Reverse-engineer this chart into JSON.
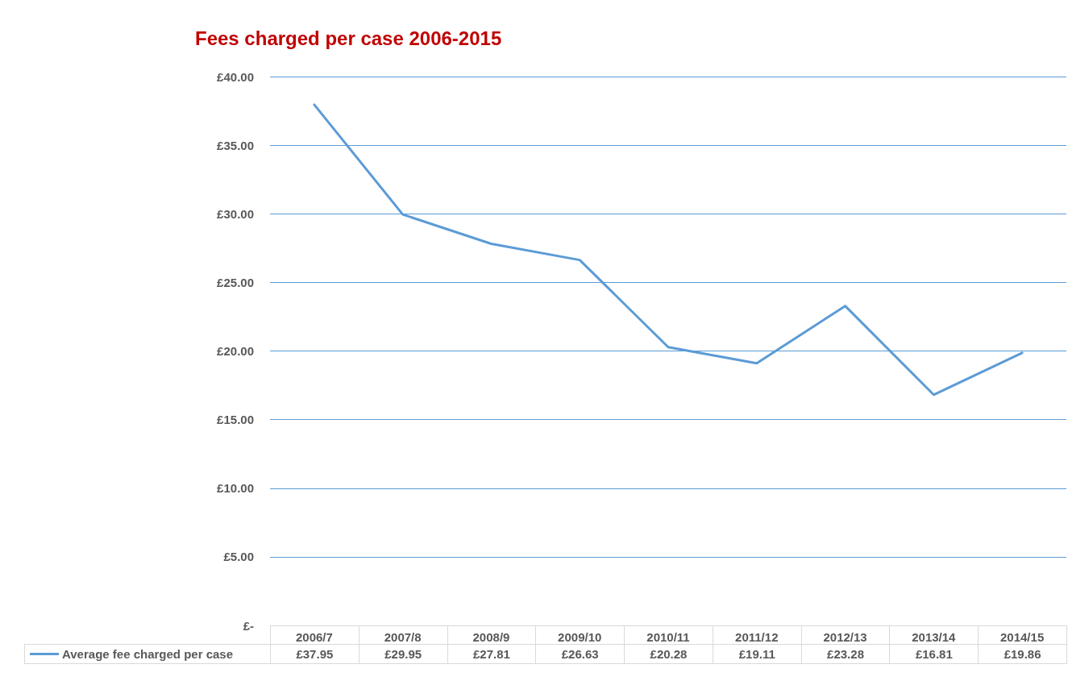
{
  "chart_data": {
    "type": "line",
    "title": "Fees charged per case 2006-2015",
    "categories": [
      "2006/7",
      "2007/8",
      "2008/9",
      "2009/10",
      "2010/11",
      "2011/12",
      "2012/13",
      "2013/14",
      "2014/15"
    ],
    "series": [
      {
        "name": "Average fee charged per case",
        "color": "#5b9bd5",
        "values": [
          37.95,
          29.95,
          27.81,
          26.63,
          20.28,
          19.11,
          23.28,
          16.81,
          19.86
        ],
        "value_labels": [
          "£37.95",
          "£29.95",
          "£27.81",
          "£26.63",
          "£20.28",
          "£19.11",
          "£23.28",
          "£16.81",
          "£19.86"
        ]
      }
    ],
    "ylim": [
      0,
      40
    ],
    "yticks": [
      {
        "value": 0,
        "label": "£-"
      },
      {
        "value": 5,
        "label": "£5.00"
      },
      {
        "value": 10,
        "label": "£10.00"
      },
      {
        "value": 15,
        "label": "£15.00"
      },
      {
        "value": 20,
        "label": "£20.00"
      },
      {
        "value": 25,
        "label": "£25.00"
      },
      {
        "value": 30,
        "label": "£30.00"
      },
      {
        "value": 35,
        "label": "£35.00"
      },
      {
        "value": 40,
        "label": "£40.00"
      }
    ],
    "grid": "y",
    "legend": "bottom",
    "marker": "none",
    "line_style": "solid"
  }
}
